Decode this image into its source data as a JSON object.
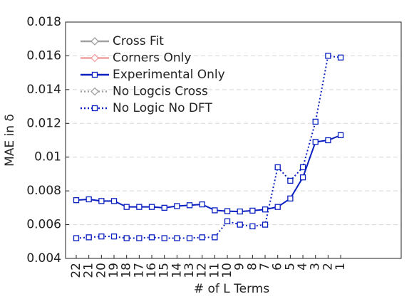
{
  "chart_data": {
    "type": "line",
    "xlabel": "# of L Terms",
    "ylabel": "MAE in δ",
    "categories": [
      "22",
      "21",
      "20",
      "19",
      "18",
      "17",
      "16",
      "15",
      "14",
      "13",
      "12",
      "11",
      "10",
      "9",
      "8",
      "7",
      "6",
      "5",
      "4",
      "3",
      "2",
      "1"
    ],
    "ylim": [
      0.004,
      0.018
    ],
    "yticks": [
      0.004,
      0.006,
      0.008,
      0.01,
      0.012,
      0.014,
      0.016,
      0.018
    ],
    "grid": true,
    "legend": "upper left",
    "series": [
      {
        "name": "Cross Fit",
        "color": "#a0a0a0",
        "dash": "solid",
        "marker": "diamond",
        "visible": false,
        "values": [
          null,
          null,
          null,
          null,
          null,
          null,
          null,
          null,
          null,
          null,
          null,
          null,
          null,
          null,
          null,
          null,
          null,
          null,
          null,
          null,
          null,
          null
        ]
      },
      {
        "name": "Corners Only",
        "color": "#f0a0a0",
        "dash": "solid",
        "marker": "diamond",
        "visible": false,
        "values": [
          null,
          null,
          null,
          null,
          null,
          null,
          null,
          null,
          null,
          null,
          null,
          null,
          null,
          null,
          null,
          null,
          null,
          null,
          null,
          null,
          null,
          null
        ]
      },
      {
        "name": "Experimental Only",
        "color": "#0a1fc0",
        "dash": "solid",
        "marker": "square",
        "visible": true,
        "values": [
          0.00745,
          0.0075,
          0.0074,
          0.0074,
          0.00705,
          0.00705,
          0.00705,
          0.007,
          0.0071,
          0.00715,
          0.0072,
          0.00685,
          0.0068,
          0.00678,
          0.00683,
          0.0069,
          0.00705,
          0.00755,
          0.0088,
          0.0109,
          0.011,
          0.0113
        ]
      },
      {
        "name": "No Logcis Cross",
        "color": "#a0a0a0",
        "dash": "dotted",
        "marker": "diamond",
        "visible": false,
        "values": [
          null,
          null,
          null,
          null,
          null,
          null,
          null,
          null,
          null,
          null,
          null,
          null,
          null,
          null,
          null,
          null,
          null,
          null,
          null,
          null,
          null,
          null
        ]
      },
      {
        "name": "No Logic No DFT",
        "color": "#0a1fc0",
        "dash": "dotted",
        "marker": "square",
        "visible": true,
        "values": [
          0.0052,
          0.00525,
          0.0053,
          0.0053,
          0.0052,
          0.0052,
          0.00525,
          0.0052,
          0.0052,
          0.0052,
          0.00525,
          0.00525,
          0.0062,
          0.006,
          0.0059,
          0.006,
          0.0094,
          0.0086,
          0.0094,
          0.0121,
          0.016,
          0.0159
        ]
      }
    ]
  }
}
